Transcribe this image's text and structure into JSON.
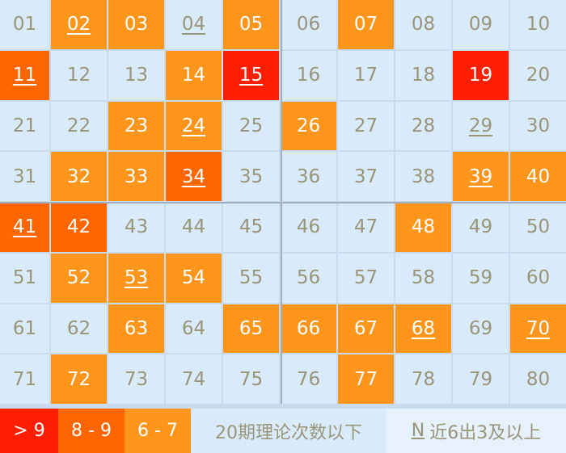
{
  "colors": {
    "red": "#ff1e00",
    "dark_orange": "#ff6600",
    "orange": "#ff951a",
    "cell": "#d9ebfb",
    "text": "#9a9478"
  },
  "cells": [
    {
      "n": "01",
      "c": "",
      "u": false
    },
    {
      "n": "02",
      "c": "O",
      "u": true
    },
    {
      "n": "03",
      "c": "O",
      "u": false
    },
    {
      "n": "04",
      "c": "",
      "u": true
    },
    {
      "n": "05",
      "c": "O",
      "u": false
    },
    {
      "n": "06",
      "c": "",
      "u": false
    },
    {
      "n": "07",
      "c": "O",
      "u": false
    },
    {
      "n": "08",
      "c": "",
      "u": false
    },
    {
      "n": "09",
      "c": "",
      "u": false
    },
    {
      "n": "10",
      "c": "",
      "u": false
    },
    {
      "n": "11",
      "c": "D",
      "u": true
    },
    {
      "n": "12",
      "c": "",
      "u": false
    },
    {
      "n": "13",
      "c": "",
      "u": false
    },
    {
      "n": "14",
      "c": "O",
      "u": false
    },
    {
      "n": "15",
      "c": "R",
      "u": true
    },
    {
      "n": "16",
      "c": "",
      "u": false
    },
    {
      "n": "17",
      "c": "",
      "u": false
    },
    {
      "n": "18",
      "c": "",
      "u": false
    },
    {
      "n": "19",
      "c": "R",
      "u": false
    },
    {
      "n": "20",
      "c": "",
      "u": false
    },
    {
      "n": "21",
      "c": "",
      "u": false
    },
    {
      "n": "22",
      "c": "",
      "u": false
    },
    {
      "n": "23",
      "c": "O",
      "u": false
    },
    {
      "n": "24",
      "c": "O",
      "u": true
    },
    {
      "n": "25",
      "c": "",
      "u": false
    },
    {
      "n": "26",
      "c": "O",
      "u": false
    },
    {
      "n": "27",
      "c": "",
      "u": false
    },
    {
      "n": "28",
      "c": "",
      "u": false
    },
    {
      "n": "29",
      "c": "",
      "u": true
    },
    {
      "n": "30",
      "c": "",
      "u": false
    },
    {
      "n": "31",
      "c": "",
      "u": false
    },
    {
      "n": "32",
      "c": "O",
      "u": false
    },
    {
      "n": "33",
      "c": "O",
      "u": false
    },
    {
      "n": "34",
      "c": "D",
      "u": true
    },
    {
      "n": "35",
      "c": "",
      "u": false
    },
    {
      "n": "36",
      "c": "",
      "u": false
    },
    {
      "n": "37",
      "c": "",
      "u": false
    },
    {
      "n": "38",
      "c": "",
      "u": false
    },
    {
      "n": "39",
      "c": "O",
      "u": true
    },
    {
      "n": "40",
      "c": "O",
      "u": false
    },
    {
      "n": "41",
      "c": "D",
      "u": true
    },
    {
      "n": "42",
      "c": "D",
      "u": false
    },
    {
      "n": "43",
      "c": "",
      "u": false
    },
    {
      "n": "44",
      "c": "",
      "u": false
    },
    {
      "n": "45",
      "c": "",
      "u": false
    },
    {
      "n": "46",
      "c": "",
      "u": false
    },
    {
      "n": "47",
      "c": "",
      "u": false
    },
    {
      "n": "48",
      "c": "O",
      "u": false
    },
    {
      "n": "49",
      "c": "",
      "u": false
    },
    {
      "n": "50",
      "c": "",
      "u": false
    },
    {
      "n": "51",
      "c": "",
      "u": false
    },
    {
      "n": "52",
      "c": "O",
      "u": false
    },
    {
      "n": "53",
      "c": "O",
      "u": true
    },
    {
      "n": "54",
      "c": "O",
      "u": false
    },
    {
      "n": "55",
      "c": "",
      "u": false
    },
    {
      "n": "56",
      "c": "",
      "u": false
    },
    {
      "n": "57",
      "c": "",
      "u": false
    },
    {
      "n": "58",
      "c": "",
      "u": false
    },
    {
      "n": "59",
      "c": "",
      "u": false
    },
    {
      "n": "60",
      "c": "",
      "u": false
    },
    {
      "n": "61",
      "c": "",
      "u": false
    },
    {
      "n": "62",
      "c": "",
      "u": false
    },
    {
      "n": "63",
      "c": "O",
      "u": false
    },
    {
      "n": "64",
      "c": "",
      "u": false
    },
    {
      "n": "65",
      "c": "O",
      "u": false
    },
    {
      "n": "66",
      "c": "O",
      "u": false
    },
    {
      "n": "67",
      "c": "O",
      "u": false
    },
    {
      "n": "68",
      "c": "O",
      "u": true
    },
    {
      "n": "69",
      "c": "",
      "u": false
    },
    {
      "n": "70",
      "c": "O",
      "u": true
    },
    {
      "n": "71",
      "c": "",
      "u": false
    },
    {
      "n": "72",
      "c": "O",
      "u": false
    },
    {
      "n": "73",
      "c": "",
      "u": false
    },
    {
      "n": "74",
      "c": "",
      "u": false
    },
    {
      "n": "75",
      "c": "",
      "u": false
    },
    {
      "n": "76",
      "c": "",
      "u": false
    },
    {
      "n": "77",
      "c": "O",
      "u": false
    },
    {
      "n": "78",
      "c": "",
      "u": false
    },
    {
      "n": "79",
      "c": "",
      "u": false
    },
    {
      "n": "80",
      "c": "",
      "u": false
    }
  ],
  "legend": {
    "gt9": "> 9",
    "r89": "8 - 9",
    "r67": "6 - 7",
    "below": "20期理论次数以下",
    "n_mark": "N",
    "recent": "近6出3及以上"
  }
}
